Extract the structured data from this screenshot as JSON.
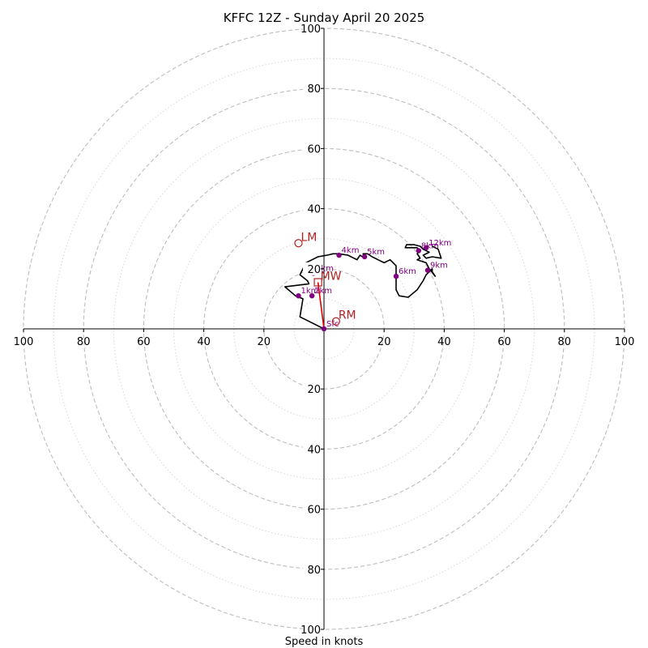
{
  "chart_data": {
    "type": "line",
    "subtype": "hodograph",
    "title": "KFFC 12Z - Sunday April 20 2025",
    "xlabel": "Speed in knots",
    "ylabel": "",
    "xlim": [
      -100,
      100
    ],
    "ylim": [
      -100,
      100
    ],
    "rings_major": [
      20,
      40,
      60,
      80,
      100
    ],
    "rings_minor": [
      10,
      30,
      50,
      70,
      90
    ],
    "x_ticks": [
      {
        "value": -100,
        "label": "100"
      },
      {
        "value": -80,
        "label": "80"
      },
      {
        "value": -60,
        "label": "60"
      },
      {
        "value": -40,
        "label": "40"
      },
      {
        "value": -20,
        "label": "20"
      },
      {
        "value": 20,
        "label": "20"
      },
      {
        "value": 40,
        "label": "40"
      },
      {
        "value": 60,
        "label": "60"
      },
      {
        "value": 80,
        "label": "80"
      },
      {
        "value": 100,
        "label": "100"
      }
    ],
    "y_ticks": [
      {
        "value": 100,
        "label": "100"
      },
      {
        "value": 80,
        "label": "80"
      },
      {
        "value": 60,
        "label": "60"
      },
      {
        "value": 40,
        "label": "40"
      },
      {
        "value": 20,
        "label": "20"
      },
      {
        "value": -20,
        "label": "20"
      },
      {
        "value": -40,
        "label": "40"
      },
      {
        "value": -60,
        "label": "60"
      },
      {
        "value": -80,
        "label": "80"
      },
      {
        "value": -100,
        "label": "100"
      }
    ],
    "hodograph_trace": {
      "u": [
        0,
        -8,
        -7,
        -9.5,
        -13,
        -5,
        -5.5,
        -8,
        -6,
        -4,
        -2,
        1,
        3,
        5,
        8,
        11,
        12,
        13.5,
        13,
        14.5,
        16,
        18,
        20,
        22,
        24,
        24,
        24,
        25,
        28,
        31,
        33,
        34,
        35,
        36,
        36,
        37,
        35,
        34,
        31,
        32,
        31,
        32,
        31,
        27,
        27.5,
        30,
        32,
        33,
        35,
        33,
        34,
        36,
        39,
        38,
        36
      ],
      "v": [
        0,
        4,
        10,
        11,
        14,
        15,
        16,
        18,
        22,
        23,
        24,
        24.5,
        25,
        25,
        24.5,
        23,
        24.5,
        23.5,
        25,
        25,
        24,
        23,
        22,
        23,
        21,
        18,
        13,
        11,
        10.5,
        13,
        16,
        18,
        19,
        20,
        19,
        17.5,
        20,
        22,
        23,
        23.5,
        25,
        26,
        27,
        27,
        28,
        28,
        27.5,
        26.5,
        25.5,
        24.5,
        23.5,
        24,
        23.5,
        26.5,
        27.5
      ]
    },
    "height_markers": [
      {
        "label": "Sfc",
        "u": 0,
        "v": 0
      },
      {
        "label": "1km",
        "u": -8.5,
        "v": 11
      },
      {
        "label": "2km",
        "u": -4,
        "v": 11
      },
      {
        "label": "3km",
        "u": -3.5,
        "v": 18.5
      },
      {
        "label": "4km",
        "u": 5,
        "v": 24.5
      },
      {
        "label": "5km",
        "u": 13.5,
        "v": 24
      },
      {
        "label": "6km",
        "u": 24,
        "v": 17.5
      },
      {
        "label": "8km",
        "u": 31.5,
        "v": 26
      },
      {
        "label": "9km",
        "u": 34.5,
        "v": 19.5
      },
      {
        "label": "12km",
        "u": 34,
        "v": 27
      }
    ],
    "storm_motions": [
      {
        "label": "LM",
        "u": -8.5,
        "v": 28.5
      },
      {
        "label": "MW",
        "u": -2,
        "v": 15.5
      },
      {
        "label": "RM",
        "u": 4,
        "v": 2.5
      }
    ],
    "shear_vector": {
      "from": [
        0,
        0
      ],
      "to": [
        -2,
        15.5
      ]
    },
    "colors": {
      "trace": "#000000",
      "height_markers": "#800080",
      "storm_motion": "#b22222",
      "shear_vector": "#e00000",
      "ring_major": "#bdbdbd",
      "ring_minor": "#d8d8d8",
      "axis": "#000000"
    },
    "grid": true,
    "legend": "none"
  }
}
